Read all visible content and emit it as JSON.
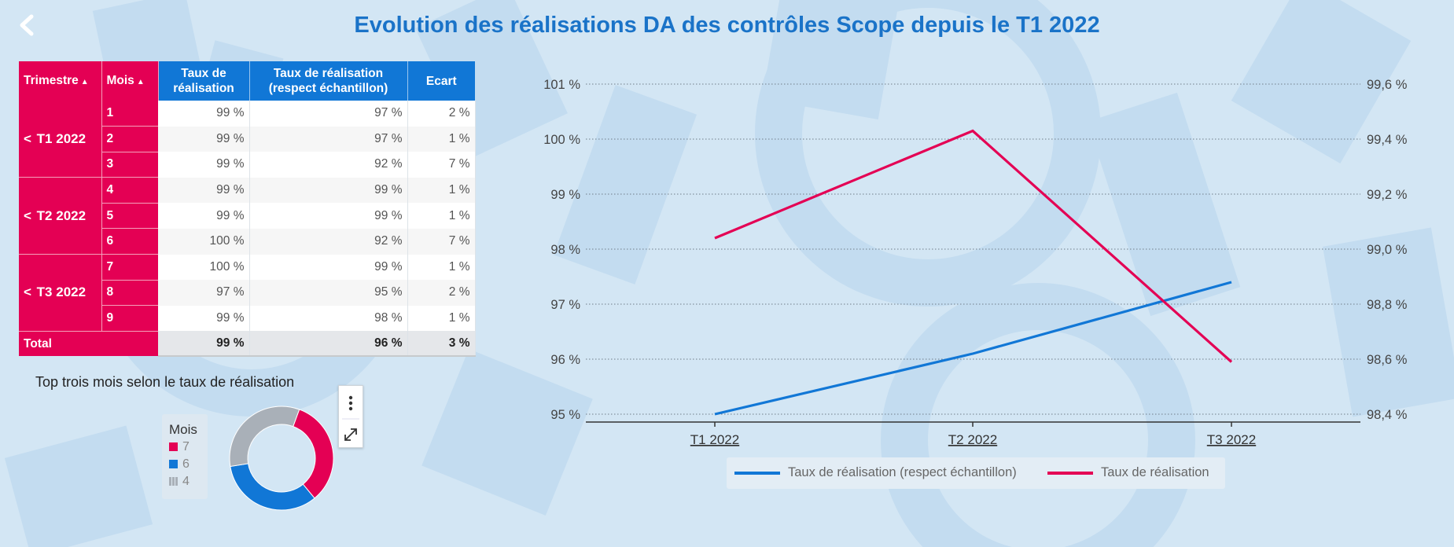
{
  "page": {
    "title": "Evolution des réalisations DA des contrôles Scope depuis le T1 2022"
  },
  "table": {
    "headers": {
      "trimestre": "Trimestre",
      "mois": "Mois",
      "taux_line1": "Taux de",
      "taux_line2": "réalisation",
      "taux_ech_line1": "Taux de réalisation",
      "taux_ech_line2": "(respect échantillon)",
      "ecart": "Ecart"
    },
    "groups": [
      {
        "label": "T1 2022",
        "rows": [
          {
            "mois": "1",
            "taux": "99 %",
            "taux_ech": "97 %",
            "ecart": "2 %"
          },
          {
            "mois": "2",
            "taux": "99 %",
            "taux_ech": "97 %",
            "ecart": "1 %"
          },
          {
            "mois": "3",
            "taux": "99 %",
            "taux_ech": "92 %",
            "ecart": "7 %"
          }
        ]
      },
      {
        "label": "T2 2022",
        "rows": [
          {
            "mois": "4",
            "taux": "99 %",
            "taux_ech": "99 %",
            "ecart": "1 %"
          },
          {
            "mois": "5",
            "taux": "99 %",
            "taux_ech": "99 %",
            "ecart": "1 %"
          },
          {
            "mois": "6",
            "taux": "100 %",
            "taux_ech": "92 %",
            "ecart": "7 %"
          }
        ]
      },
      {
        "label": "T3 2022",
        "rows": [
          {
            "mois": "7",
            "taux": "100 %",
            "taux_ech": "99 %",
            "ecart": "1 %"
          },
          {
            "mois": "8",
            "taux": "97 %",
            "taux_ech": "95 %",
            "ecart": "2 %"
          },
          {
            "mois": "9",
            "taux": "99 %",
            "taux_ech": "98 %",
            "ecart": "1 %"
          }
        ]
      }
    ],
    "total": {
      "label": "Total",
      "taux": "99 %",
      "taux_ech": "96 %",
      "ecart": "3 %"
    }
  },
  "donut": {
    "title": "Top trois mois selon le taux de réalisation",
    "legend_title": "Mois",
    "items": [
      {
        "label": "7",
        "color": "#e40054",
        "value": 100
      },
      {
        "label": "6",
        "color": "#1177d6",
        "value": 100
      },
      {
        "label": "4",
        "color": "#a9b0b8",
        "value": 99
      }
    ]
  },
  "chart_data": {
    "type": "line",
    "x": [
      "T1 2022",
      "T2 2022",
      "T3 2022"
    ],
    "left_axis": {
      "ticks": [
        "95 %",
        "96 %",
        "97 %",
        "98 %",
        "99 %",
        "100 %",
        "101 %"
      ],
      "ylim": [
        95,
        101
      ]
    },
    "right_axis": {
      "ticks": [
        "98,4 %",
        "98,6 %",
        "98,8 %",
        "99,0 %",
        "99,2 %",
        "99,4 %",
        "99,6 %"
      ],
      "ylim": [
        98.4,
        99.6
      ]
    },
    "series": [
      {
        "name": "Taux de réalisation (respect échantillon)",
        "axis": "left",
        "color": "#1177d6",
        "values": [
          95.0,
          96.1,
          97.4
        ]
      },
      {
        "name": "Taux de réalisation",
        "axis": "right",
        "color": "#e40054",
        "values": [
          99.04,
          99.43,
          98.59
        ]
      }
    ],
    "grid": true,
    "legend_position": "bottom"
  }
}
